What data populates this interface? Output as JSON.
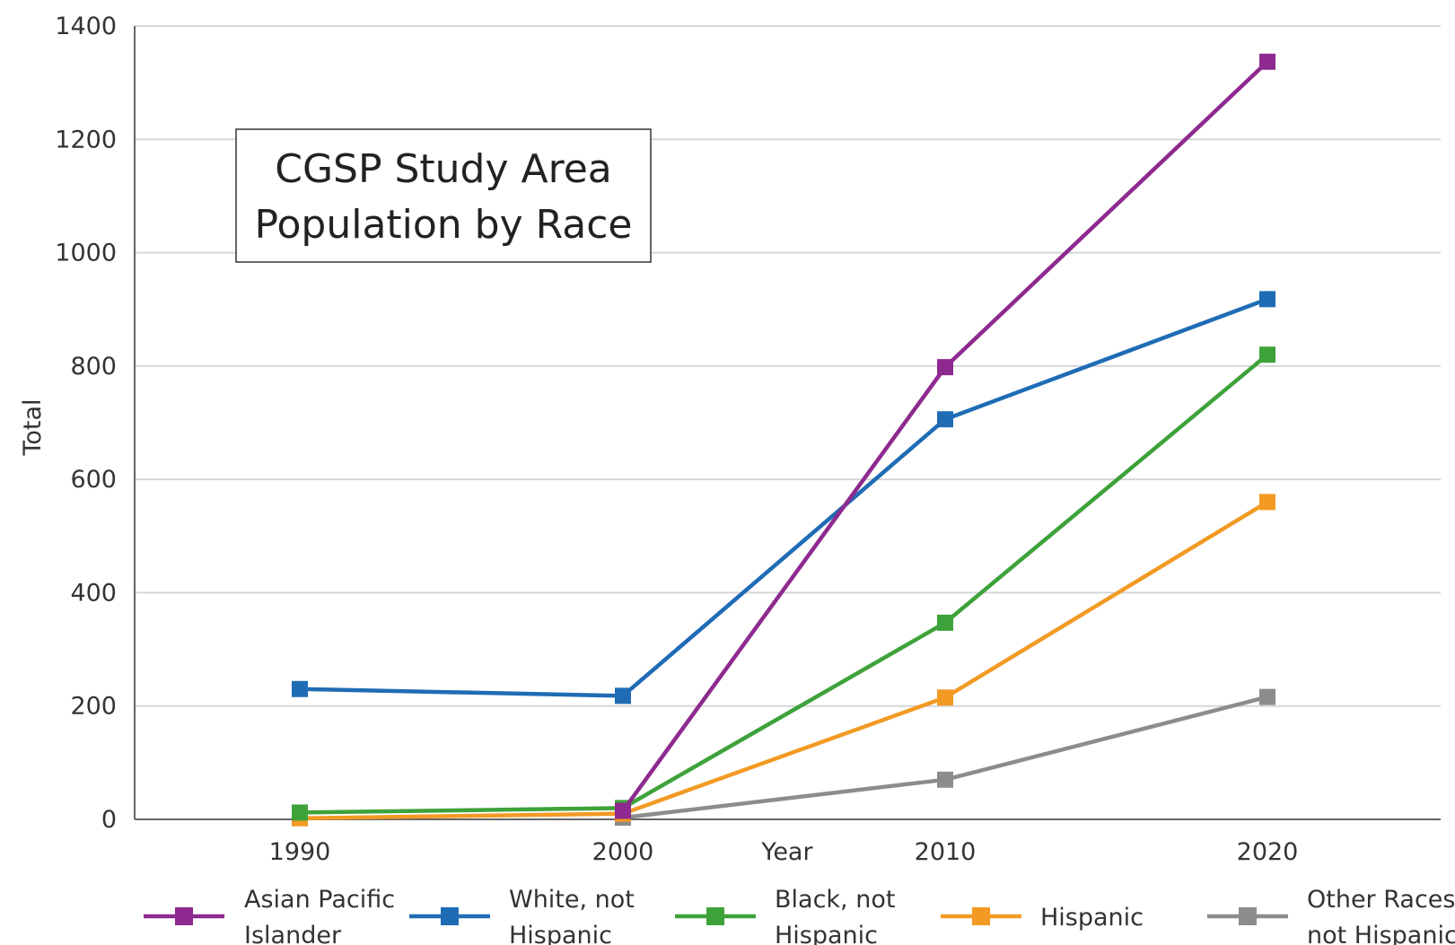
{
  "chart_data": {
    "type": "line",
    "title": "CGSP Study Area Population by Race",
    "title_lines": [
      "CGSP Study Area",
      "Population by Race"
    ],
    "xlabel": "Year",
    "ylabel": "Total",
    "x": [
      1990,
      2000,
      2010,
      2020
    ],
    "x_tick_labels": [
      "1990",
      "2000",
      "2010",
      "2020"
    ],
    "ylim": [
      0,
      1400
    ],
    "y_ticks": [
      0,
      200,
      400,
      600,
      800,
      1000,
      1200,
      1400
    ],
    "grid": true,
    "legend_position": "bottom",
    "series": [
      {
        "name": "Asian Pacific Islander",
        "name_lines": [
          "Asian Pacific",
          "Islander"
        ],
        "color": "#8e2a8f",
        "values": [
          null,
          15,
          798,
          1337
        ]
      },
      {
        "name": "White, not Hispanic",
        "name_lines": [
          "White, not",
          "Hispanic"
        ],
        "color": "#1f6cb5",
        "values": [
          230,
          218,
          706,
          918
        ]
      },
      {
        "name": "Black, not Hispanic",
        "name_lines": [
          "Black, not",
          "Hispanic"
        ],
        "color": "#3ea23a",
        "values": [
          12,
          20,
          347,
          820
        ]
      },
      {
        "name": "Hispanic",
        "name_lines": [
          "Hispanic"
        ],
        "color": "#f29a24",
        "values": [
          2,
          10,
          215,
          560
        ]
      },
      {
        "name": "Other Races, not Hispanic",
        "name_lines": [
          "Other Races,",
          "not Hispanic"
        ],
        "color": "#8c8c8c",
        "values": [
          null,
          3,
          70,
          216
        ]
      }
    ]
  }
}
